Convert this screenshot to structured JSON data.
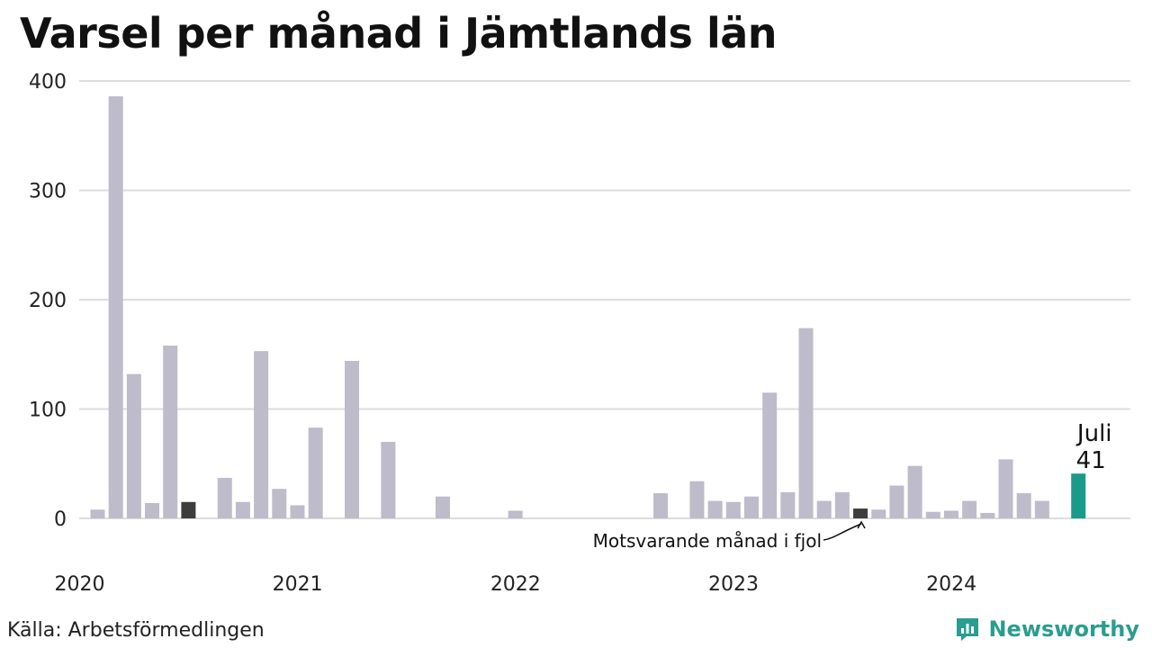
{
  "title": "Varsel per månad i Jämtlands län",
  "source": "Källa: Arbetsförmedlingen",
  "brand": {
    "name": "Newsworthy",
    "icon": "newsworthy-logo-icon"
  },
  "colors": {
    "bar": "#bebbca",
    "comparison": "#3d3d3d",
    "highlight": "#1a9a8a",
    "grid": "#dddddd",
    "brand": "#2a9d8f"
  },
  "chart_data": {
    "type": "bar",
    "ylim": [
      0,
      400
    ],
    "y_ticks": [
      "0",
      "100",
      "200",
      "300",
      "400"
    ],
    "x_tick_labels": [
      "2020",
      "2021",
      "2022",
      "2023",
      "2024"
    ],
    "grid": true,
    "start_year": 2020,
    "values": [
      8,
      386,
      132,
      14,
      158,
      15,
      0,
      37,
      15,
      153,
      27,
      12,
      83,
      0,
      144,
      0,
      70,
      0,
      0,
      20,
      0,
      0,
      0,
      7,
      0,
      0,
      0,
      0,
      0,
      0,
      0,
      23,
      0,
      34,
      16,
      15,
      20,
      115,
      24,
      174,
      16,
      24,
      9,
      8,
      30,
      48,
      6,
      7,
      16,
      5,
      54,
      23,
      16,
      0,
      41
    ],
    "highlight_index": 54,
    "comparison_index": 42,
    "comparison_index_2": 5,
    "highlight_label": "Juli",
    "highlight_value": "41",
    "annotation": "Motsvarande månad i fjol"
  }
}
